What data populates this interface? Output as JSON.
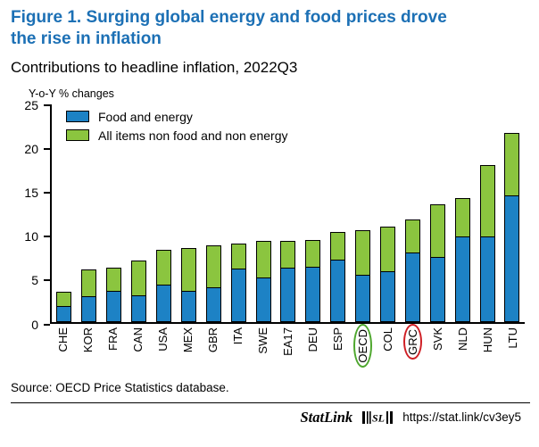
{
  "header": {
    "figure_title": "Figure 1. Surging global energy and food prices drove the rise in inflation",
    "subtitle": "Contributions to headline inflation, 2022Q3"
  },
  "colors": {
    "title_blue": "#1c70b5",
    "bar_blue": "#1d82c5",
    "bar_green": "#8bc53f",
    "annotation_green": "#4ea72e",
    "annotation_red": "#cf1f25"
  },
  "chart_data": {
    "type": "bar",
    "stacked": true,
    "title": "Contributions to headline inflation, 2022Q3",
    "ylabel": "Y-o-Y % changes",
    "ylim": [
      0,
      25
    ],
    "yticks": [
      0,
      5,
      10,
      15,
      20,
      25
    ],
    "grid": false,
    "legend_position": "top-left-inside",
    "categories": [
      "CHE",
      "KOR",
      "FRA",
      "CAN",
      "USA",
      "MEX",
      "GBR",
      "ITA",
      "SWE",
      "EA17",
      "DEU",
      "ESP",
      "OECD",
      "COL",
      "GRC",
      "SVK",
      "NLD",
      "HUN",
      "LTU"
    ],
    "series": [
      {
        "name": "Food and energy",
        "color": "#1d82c5",
        "values": [
          1.7,
          2.8,
          3.5,
          2.9,
          4.2,
          3.5,
          3.9,
          6.0,
          5.0,
          6.1,
          6.2,
          7.0,
          5.3,
          5.7,
          7.8,
          7.3,
          9.7,
          9.7,
          14.3
        ]
      },
      {
        "name": "All items non food and non energy",
        "color": "#8bc53f",
        "values": [
          1.7,
          3.1,
          2.7,
          4.1,
          4.1,
          5.0,
          4.9,
          2.9,
          4.3,
          3.2,
          3.2,
          3.3,
          5.2,
          5.2,
          3.9,
          6.1,
          4.5,
          8.2,
          7.2
        ]
      }
    ],
    "annotations": [
      {
        "category": "OECD",
        "shape": "ellipse",
        "color": "#4ea72e"
      },
      {
        "category": "GRC",
        "shape": "ellipse",
        "color": "#cf1f25"
      }
    ]
  },
  "footer": {
    "source": "Source: OECD Price Statistics database.",
    "statlink_label": "StatLink",
    "statlink_url": "https://stat.link/cv3ey5"
  }
}
